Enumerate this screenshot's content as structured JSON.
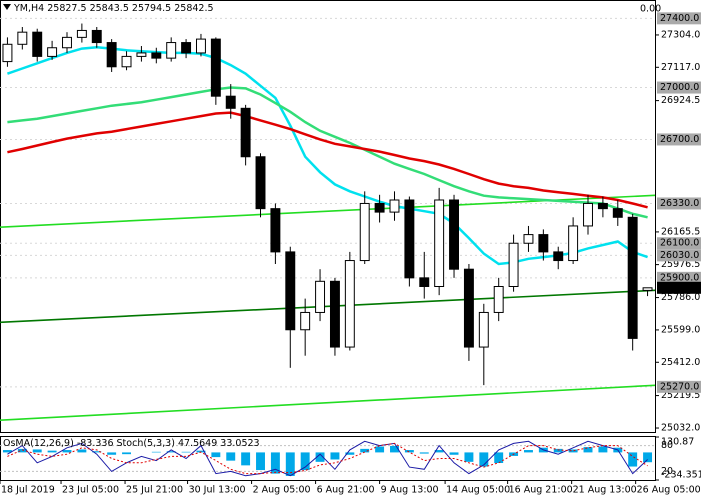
{
  "chart_data": {
    "type": "candlestick",
    "symbol": "YM,H4",
    "top_right_text": "0.00",
    "xlim": [
      0,
      44
    ],
    "ylim": [
      25009,
      27506
    ],
    "xticks": [
      {
        "value": 0,
        "label": "18 Jul 2019"
      },
      {
        "value": 4.1,
        "label": "23 Jul 05:00"
      },
      {
        "value": 8.4,
        "label": "25 Jul 21:00"
      },
      {
        "value": 12.6,
        "label": "30 Jul 13:00"
      },
      {
        "value": 16.9,
        "label": "2 Aug 05:00"
      },
      {
        "value": 21.2,
        "label": "6 Aug 21:00"
      },
      {
        "value": 25.5,
        "label": "9 Aug 13:00"
      },
      {
        "value": 29.9,
        "label": "14 Aug 05:00"
      },
      {
        "value": 34.1,
        "label": "16 Aug 21:00"
      },
      {
        "value": 38.4,
        "label": "21 Aug 13:00"
      },
      {
        "value": 42.7,
        "label": "26 Aug 05:00"
      }
    ],
    "yticks": [
      {
        "value": 27304,
        "label": "27304.0"
      },
      {
        "value": 27117,
        "label": "27117.0"
      },
      26924.5,
      26165.5,
      25976.5,
      {
        "value": 25786,
        "label": "25786.0"
      },
      {
        "value": 25599,
        "label": "25599.0"
      },
      {
        "value": 25412,
        "label": "25412.0"
      },
      25219.5,
      {
        "value": 25032,
        "label": "25032.0"
      }
    ],
    "levels": [
      {
        "value": 27400,
        "label": "27400.0"
      },
      {
        "value": 27000,
        "label": "27000.0"
      },
      {
        "value": 26700,
        "label": "26700.0"
      },
      {
        "value": 26330,
        "label": "26330.0"
      },
      {
        "value": 26100,
        "label": "26100.0"
      },
      {
        "value": 26030,
        "label": "26030.0"
      },
      {
        "value": 25900,
        "label": "25900.0"
      },
      {
        "value": 25270,
        "label": "25270.0"
      }
    ],
    "candles": {
      "open": [
        27150,
        27250,
        27320,
        27180,
        27230,
        27290,
        27330,
        27260,
        27120,
        27180,
        27200,
        27170,
        27260,
        27200,
        27280,
        26950,
        26880,
        26600,
        26300,
        26050,
        25600,
        25700,
        25880,
        25500,
        26000,
        26330,
        26280,
        26350,
        25900,
        25850,
        26350,
        25950,
        25500,
        25700,
        25850,
        26100,
        26150,
        26050,
        26000,
        26200,
        26330,
        26300,
        26250,
        25827.5
      ],
      "high": [
        27290,
        27350,
        27340,
        27270,
        27320,
        27370,
        27350,
        27280,
        27210,
        27240,
        27230,
        27290,
        27280,
        27310,
        27290,
        27020,
        26900,
        26620,
        26330,
        26080,
        25780,
        25950,
        25900,
        26050,
        26400,
        26380,
        26400,
        26370,
        26050,
        26420,
        26380,
        25980,
        25750,
        25900,
        26150,
        26200,
        26180,
        26080,
        26250,
        26380,
        26370,
        26350,
        26270,
        25843.5
      ],
      "low": [
        27120,
        27220,
        27150,
        27160,
        27200,
        27260,
        27230,
        27090,
        27100,
        27150,
        27140,
        27150,
        27170,
        27180,
        26900,
        26820,
        26550,
        26250,
        25980,
        25380,
        25450,
        25650,
        25450,
        25480,
        25980,
        26220,
        26230,
        25850,
        25780,
        25800,
        25900,
        25420,
        25280,
        25650,
        25820,
        26050,
        26000,
        25950,
        25980,
        26150,
        26250,
        26200,
        25480,
        25794.5
      ],
      "close": [
        27250,
        27320,
        27180,
        27230,
        27290,
        27330,
        27260,
        27120,
        27180,
        27200,
        27170,
        27260,
        27200,
        27280,
        26950,
        26880,
        26600,
        26300,
        26050,
        25600,
        25700,
        25880,
        25500,
        26000,
        26330,
        26280,
        26350,
        25900,
        25850,
        26350,
        25950,
        25500,
        25700,
        25850,
        26100,
        26150,
        26050,
        26000,
        26200,
        26330,
        26300,
        26250,
        25550,
        25842.5
      ]
    },
    "ma": [
      {
        "color": "#00e1ee",
        "values": [
          27080,
          27110,
          27140,
          27170,
          27200,
          27225,
          27233,
          27225,
          27215,
          27210,
          27205,
          27200,
          27200,
          27195,
          27170,
          27130,
          27080,
          27010,
          26940,
          26780,
          26600,
          26510,
          26440,
          26400,
          26370,
          26340,
          26315,
          26300,
          26285,
          26270,
          26215,
          26130,
          26040,
          25980,
          25990,
          26010,
          26020,
          26030,
          26045,
          26070,
          26090,
          26110,
          26050,
          26020
        ]
      },
      {
        "color": "#33dd77",
        "values": [
          26800,
          26810,
          26820,
          26835,
          26850,
          26865,
          26880,
          26895,
          26905,
          26915,
          26930,
          26945,
          26960,
          26975,
          26990,
          27000,
          26995,
          26960,
          26910,
          26860,
          26800,
          26750,
          26715,
          26680,
          26640,
          26600,
          26560,
          26530,
          26500,
          26465,
          26430,
          26400,
          26375,
          26365,
          26360,
          26355,
          26350,
          26345,
          26340,
          26335,
          26330,
          26300,
          26270,
          26250
        ]
      },
      {
        "color": "#e00000",
        "values": [
          26626,
          26645,
          26665,
          26685,
          26705,
          26720,
          26735,
          26745,
          26760,
          26775,
          26790,
          26805,
          26820,
          26835,
          26850,
          26855,
          26835,
          26810,
          26785,
          26760,
          26730,
          26700,
          26675,
          26660,
          26645,
          26630,
          26610,
          26590,
          26575,
          26555,
          26530,
          26500,
          26470,
          26445,
          26430,
          26420,
          26405,
          26395,
          26385,
          26375,
          26365,
          26350,
          26330,
          26308
        ]
      }
    ],
    "trendlines": [
      {
        "color": "#22dd22",
        "values": [
          26193,
          26377
        ]
      },
      {
        "color": "#007700",
        "values": [
          25643,
          25828
        ]
      },
      {
        "color": "#22dd22",
        "values": [
          25077,
          25279
        ]
      }
    ],
    "osc": {
      "osma_name": "OsMA(12,26,9)",
      "stoch_name": "Stoch(5,3,3)",
      "osma_color": "#00a8e8",
      "ylim": [
        -234.351,
        130.87
      ],
      "yticks": [
        130.87,
        -234.351
      ],
      "stoch_ylim": [
        0,
        100
      ],
      "stoch_levels": [
        80,
        20
      ],
      "osma": [
        20,
        30,
        25,
        15,
        20,
        25,
        10,
        -20,
        -15,
        0,
        5,
        10,
        5,
        15,
        -40,
        -70,
        -110,
        -150,
        -180,
        -200,
        -150,
        -80,
        -60,
        -20,
        30,
        50,
        55,
        20,
        -10,
        20,
        -20,
        -80,
        -120,
        -90,
        -30,
        20,
        40,
        30,
        25,
        45,
        50,
        40,
        -120,
        -83.336
      ],
      "stoch_main": {
        "color": "#1a1aa6",
        "values": [
          60,
          80,
          40,
          55,
          75,
          85,
          60,
          20,
          40,
          55,
          45,
          70,
          50,
          80,
          15,
          20,
          10,
          15,
          25,
          10,
          30,
          60,
          25,
          70,
          90,
          80,
          85,
          30,
          25,
          80,
          40,
          15,
          35,
          70,
          85,
          90,
          70,
          60,
          75,
          90,
          80,
          70,
          15,
          47.5649
        ]
      },
      "stoch_signal": {
        "color": "#e00000",
        "values": [
          55,
          70,
          60,
          55,
          60,
          75,
          70,
          50,
          40,
          40,
          48,
          55,
          55,
          65,
          45,
          25,
          15,
          15,
          18,
          17,
          22,
          35,
          40,
          50,
          65,
          80,
          85,
          65,
          45,
          50,
          50,
          40,
          30,
          40,
          60,
          80,
          80,
          70,
          68,
          75,
          80,
          80,
          55,
          33.0523
        ]
      }
    }
  }
}
